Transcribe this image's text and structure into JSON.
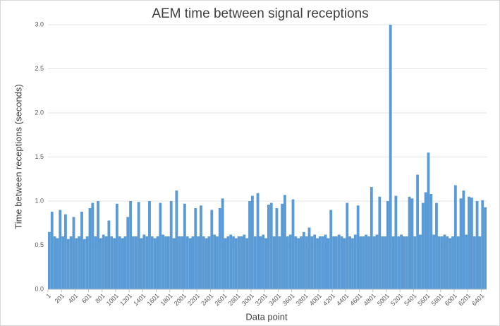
{
  "chart_data": {
    "type": "bar",
    "title": "AEM time between signal receptions",
    "x_label": "Data point",
    "y_label": "Time between receptions (seconds)",
    "color": "#5b9bd5",
    "grid": true,
    "xlim": [
      1,
      6481
    ],
    "xticks": [
      1,
      201,
      401,
      601,
      801,
      1001,
      1201,
      1401,
      1601,
      1801,
      2001,
      2201,
      2401,
      2601,
      2801,
      3001,
      3201,
      3401,
      3601,
      3801,
      4001,
      4201,
      4401,
      4601,
      4801,
      5001,
      5201,
      5401,
      5601,
      5801,
      6001,
      6201,
      6401
    ],
    "ylim": [
      0,
      3
    ],
    "yticks": [
      {
        "value": 0,
        "label": "0.0"
      },
      0.5,
      {
        "value": 1,
        "label": "1.0"
      },
      1.5,
      {
        "value": 2,
        "label": "2.0"
      },
      2.5,
      {
        "value": 3,
        "label": "3.0"
      }
    ],
    "x": [
      1,
      41,
      81,
      121,
      161,
      201,
      241,
      281,
      321,
      361,
      401,
      441,
      481,
      521,
      561,
      601,
      641,
      681,
      721,
      761,
      801,
      841,
      881,
      921,
      961,
      1001,
      1041,
      1081,
      1121,
      1161,
      1201,
      1241,
      1281,
      1321,
      1361,
      1401,
      1441,
      1481,
      1521,
      1561,
      1601,
      1641,
      1681,
      1721,
      1761,
      1801,
      1841,
      1881,
      1921,
      1961,
      2001,
      2041,
      2081,
      2121,
      2161,
      2201,
      2241,
      2281,
      2321,
      2361,
      2401,
      2441,
      2481,
      2521,
      2561,
      2601,
      2641,
      2681,
      2721,
      2761,
      2801,
      2841,
      2881,
      2921,
      2961,
      3001,
      3041,
      3081,
      3121,
      3161,
      3201,
      3241,
      3281,
      3321,
      3361,
      3401,
      3441,
      3481,
      3521,
      3561,
      3601,
      3641,
      3681,
      3721,
      3761,
      3801,
      3841,
      3881,
      3921,
      3961,
      4001,
      4041,
      4081,
      4121,
      4161,
      4201,
      4241,
      4281,
      4321,
      4361,
      4401,
      4441,
      4481,
      4521,
      4561,
      4601,
      4641,
      4681,
      4721,
      4761,
      4801,
      4841,
      4881,
      4921,
      4961,
      5001,
      5041,
      5081,
      5121,
      5161,
      5201,
      5241,
      5281,
      5321,
      5361,
      5401,
      5441,
      5481,
      5521,
      5561,
      5601,
      5641,
      5681,
      5721,
      5761,
      5801,
      5841,
      5881,
      5921,
      5961,
      6001,
      6041,
      6081,
      6121,
      6161,
      6201,
      6241,
      6281,
      6321,
      6361,
      6401,
      6441
    ],
    "values": [
      0.65,
      0.88,
      0.6,
      0.58,
      0.9,
      0.6,
      0.85,
      0.57,
      0.6,
      0.82,
      0.58,
      0.6,
      0.88,
      0.57,
      0.6,
      0.92,
      0.98,
      0.6,
      1.0,
      0.58,
      0.62,
      0.6,
      0.78,
      0.6,
      0.58,
      0.97,
      0.6,
      0.58,
      0.6,
      0.82,
      1.0,
      0.6,
      0.6,
      0.99,
      0.58,
      0.62,
      0.6,
      1.0,
      0.6,
      0.58,
      0.6,
      0.98,
      0.62,
      0.6,
      0.6,
      1.0,
      0.58,
      1.12,
      0.6,
      0.6,
      0.97,
      0.6,
      0.58,
      0.6,
      0.92,
      0.6,
      0.95,
      0.6,
      0.58,
      0.6,
      0.9,
      0.62,
      0.6,
      0.92,
      1.03,
      0.58,
      0.6,
      0.62,
      0.6,
      0.58,
      0.6,
      0.6,
      0.62,
      0.58,
      1.0,
      1.06,
      0.6,
      1.09,
      0.6,
      0.62,
      0.58,
      0.96,
      0.98,
      0.6,
      0.92,
      0.6,
      0.97,
      1.07,
      0.6,
      0.62,
      1.02,
      0.6,
      0.58,
      0.6,
      0.65,
      0.6,
      0.7,
      0.6,
      0.62,
      0.58,
      0.6,
      0.6,
      0.62,
      0.58,
      0.9,
      0.6,
      0.6,
      0.62,
      0.6,
      0.58,
      0.98,
      0.6,
      0.58,
      0.62,
      0.95,
      0.6,
      0.6,
      0.62,
      0.6,
      1.16,
      0.6,
      0.62,
      1.05,
      0.6,
      0.6,
      1.0,
      3.0,
      0.6,
      1.06,
      0.6,
      0.62,
      0.6,
      0.6,
      1.05,
      1.03,
      0.6,
      1.3,
      0.62,
      0.98,
      1.1,
      1.55,
      1.08,
      0.62,
      0.98,
      0.6,
      0.6,
      0.62,
      0.6,
      0.58,
      0.6,
      1.18,
      0.6,
      1.03,
      1.12,
      0.62,
      1.05,
      1.04,
      0.6,
      1.0,
      0.6,
      1.01,
      0.93
    ]
  }
}
